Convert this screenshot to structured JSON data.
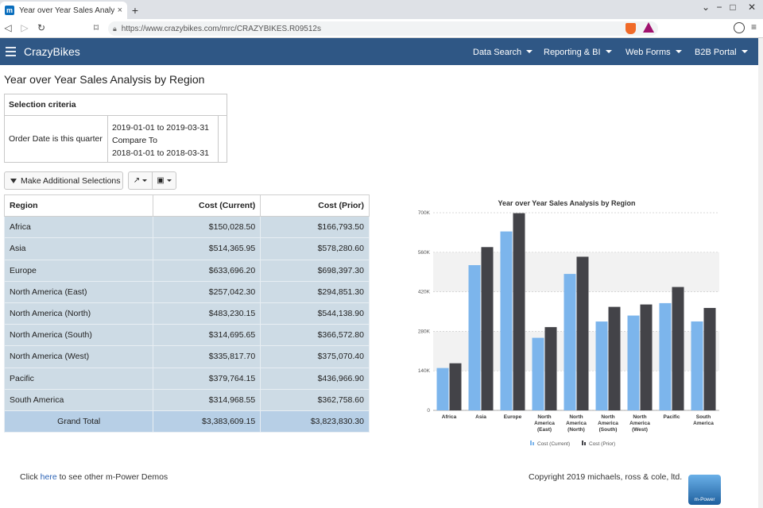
{
  "browser": {
    "tab_title": "Year over Year Sales Analysis by Re",
    "tab_close": "×",
    "new_tab": "+",
    "url": "https://www.crazybikes.com/mrc/CRAZYBIKES.R09512s"
  },
  "app": {
    "brand": "CrazyBikes",
    "nav": [
      "Data Search",
      "Reporting & BI",
      "Web Forms",
      "B2B Portal"
    ]
  },
  "page": {
    "title": "Year over Year Sales Analysis by Region"
  },
  "criteria": {
    "heading": "Selection criteria",
    "label": "Order Date is this quarter",
    "current_range": "2019-01-01 to 2019-03-31",
    "compare_label": "Compare To",
    "prior_range": "2018-01-01 to 2018-03-31"
  },
  "buttons": {
    "make_selections": "Make Additional Selections"
  },
  "table": {
    "headers": [
      "Region",
      "Cost (Current)",
      "Cost (Prior)"
    ],
    "rows": [
      [
        "Africa",
        "$150,028.50",
        "$166,793.50"
      ],
      [
        "Asia",
        "$514,365.95",
        "$578,280.60"
      ],
      [
        "Europe",
        "$633,696.20",
        "$698,397.30"
      ],
      [
        "North America (East)",
        "$257,042.30",
        "$294,851.30"
      ],
      [
        "North America (North)",
        "$483,230.15",
        "$544,138.90"
      ],
      [
        "North America (South)",
        "$314,695.65",
        "$366,572.80"
      ],
      [
        "North America (West)",
        "$335,817.70",
        "$375,070.40"
      ],
      [
        "Pacific",
        "$379,764.15",
        "$436,966.90"
      ],
      [
        "South America",
        "$314,968.55",
        "$362,758.60"
      ]
    ],
    "total": [
      "Grand Total",
      "$3,383,609.15",
      "$3,823,830.30"
    ]
  },
  "chart_data": {
    "type": "bar",
    "title": "Year over Year Sales Analysis by Region",
    "categories": [
      [
        "Africa"
      ],
      [
        "Asia"
      ],
      [
        "Europe"
      ],
      [
        "North",
        "America",
        "(East)"
      ],
      [
        "North",
        "America",
        "(North)"
      ],
      [
        "North",
        "America",
        "(South)"
      ],
      [
        "North",
        "America",
        "(West)"
      ],
      [
        "Pacific"
      ],
      [
        "South",
        "America"
      ]
    ],
    "series": [
      {
        "name": "Cost (Current)",
        "color": "#7cb5ec",
        "values": [
          150028.5,
          514365.95,
          633696.2,
          257042.3,
          483230.15,
          314695.65,
          335817.7,
          379764.15,
          314968.55
        ]
      },
      {
        "name": "Cost (Prior)",
        "color": "#434348",
        "values": [
          166793.5,
          578280.6,
          698397.3,
          294851.3,
          544138.9,
          366572.8,
          375070.4,
          436966.9,
          362758.6
        ]
      }
    ],
    "ylim": [
      0,
      700000
    ],
    "yticks": [
      0,
      140000,
      280000,
      420000,
      560000,
      700000
    ],
    "ytick_labels": [
      "0",
      "140K",
      "280K",
      "420K",
      "560K",
      "700K"
    ],
    "grid": true,
    "legend_position": "bottom-center"
  },
  "footer": {
    "left_prefix": "Click ",
    "left_link": "here",
    "left_suffix": " to see other m-Power Demos",
    "copyright": "Copyright 2019 michaels, ross & cole, ltd.",
    "logo_text": "m-Power"
  }
}
